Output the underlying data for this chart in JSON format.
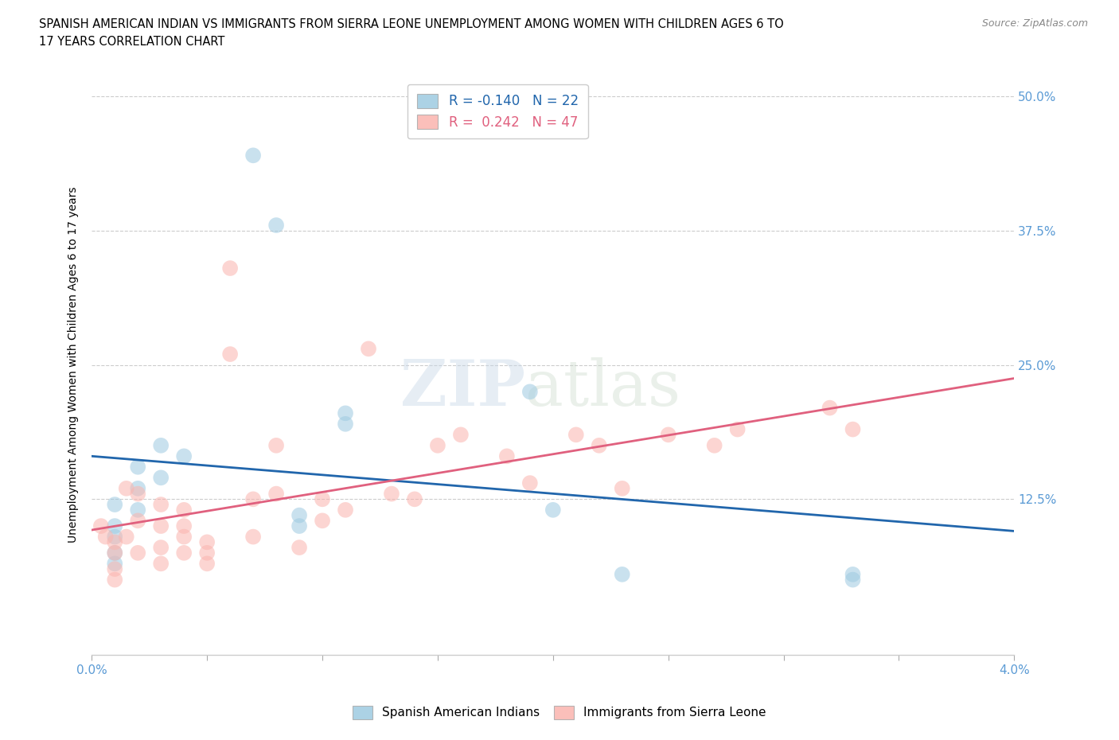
{
  "title_line1": "SPANISH AMERICAN INDIAN VS IMMIGRANTS FROM SIERRA LEONE UNEMPLOYMENT AMONG WOMEN WITH CHILDREN AGES 6 TO",
  "title_line2": "17 YEARS CORRELATION CHART",
  "source": "Source: ZipAtlas.com",
  "ylabel": "Unemployment Among Women with Children Ages 6 to 17 years",
  "xlim": [
    0.0,
    0.04
  ],
  "ylim": [
    -0.02,
    0.52
  ],
  "plot_ylim": [
    0.0,
    0.52
  ],
  "yticks": [
    0.0,
    0.125,
    0.25,
    0.375,
    0.5
  ],
  "ytick_labels": [
    "",
    "12.5%",
    "25.0%",
    "37.5%",
    "50.0%"
  ],
  "xtick_vals": [
    0.0,
    0.005,
    0.01,
    0.015,
    0.02,
    0.025,
    0.03,
    0.035,
    0.04
  ],
  "xtick_labels": [
    "0.0%",
    "",
    "",
    "",
    "",
    "",
    "",
    "",
    "4.0%"
  ],
  "blue_color": "#9ecae1",
  "pink_color": "#fbb4ae",
  "blue_line_color": "#2166ac",
  "pink_line_color": "#e0607e",
  "legend_blue_r": "-0.140",
  "legend_blue_n": "22",
  "legend_pink_r": "0.242",
  "legend_pink_n": "47",
  "series1_label": "Spanish American Indians",
  "series2_label": "Immigrants from Sierra Leone",
  "watermark_zip": "ZIP",
  "watermark_atlas": "atlas",
  "background_color": "#ffffff",
  "grid_color": "#cccccc",
  "right_tick_color": "#5b9bd5",
  "bottom_tick_color": "#5b9bd5",
  "blue_x": [
    0.002,
    0.002,
    0.002,
    0.001,
    0.001,
    0.001,
    0.001,
    0.001,
    0.003,
    0.003,
    0.004,
    0.007,
    0.008,
    0.009,
    0.009,
    0.011,
    0.011,
    0.019,
    0.02,
    0.023,
    0.033,
    0.033
  ],
  "blue_y": [
    0.155,
    0.135,
    0.115,
    0.12,
    0.1,
    0.09,
    0.075,
    0.065,
    0.145,
    0.175,
    0.165,
    0.445,
    0.38,
    0.11,
    0.1,
    0.205,
    0.195,
    0.225,
    0.115,
    0.055,
    0.055,
    0.05
  ],
  "pink_x": [
    0.0004,
    0.0006,
    0.001,
    0.001,
    0.001,
    0.001,
    0.0015,
    0.0015,
    0.002,
    0.002,
    0.002,
    0.003,
    0.003,
    0.003,
    0.003,
    0.004,
    0.004,
    0.004,
    0.004,
    0.005,
    0.005,
    0.005,
    0.006,
    0.006,
    0.007,
    0.007,
    0.008,
    0.008,
    0.009,
    0.01,
    0.01,
    0.011,
    0.012,
    0.013,
    0.014,
    0.015,
    0.016,
    0.018,
    0.019,
    0.021,
    0.022,
    0.023,
    0.025,
    0.027,
    0.028,
    0.032,
    0.033
  ],
  "pink_y": [
    0.1,
    0.09,
    0.085,
    0.075,
    0.06,
    0.05,
    0.135,
    0.09,
    0.13,
    0.105,
    0.075,
    0.12,
    0.1,
    0.08,
    0.065,
    0.115,
    0.1,
    0.09,
    0.075,
    0.085,
    0.075,
    0.065,
    0.34,
    0.26,
    0.125,
    0.09,
    0.175,
    0.13,
    0.08,
    0.125,
    0.105,
    0.115,
    0.265,
    0.13,
    0.125,
    0.175,
    0.185,
    0.165,
    0.14,
    0.185,
    0.175,
    0.135,
    0.185,
    0.175,
    0.19,
    0.21,
    0.19
  ]
}
